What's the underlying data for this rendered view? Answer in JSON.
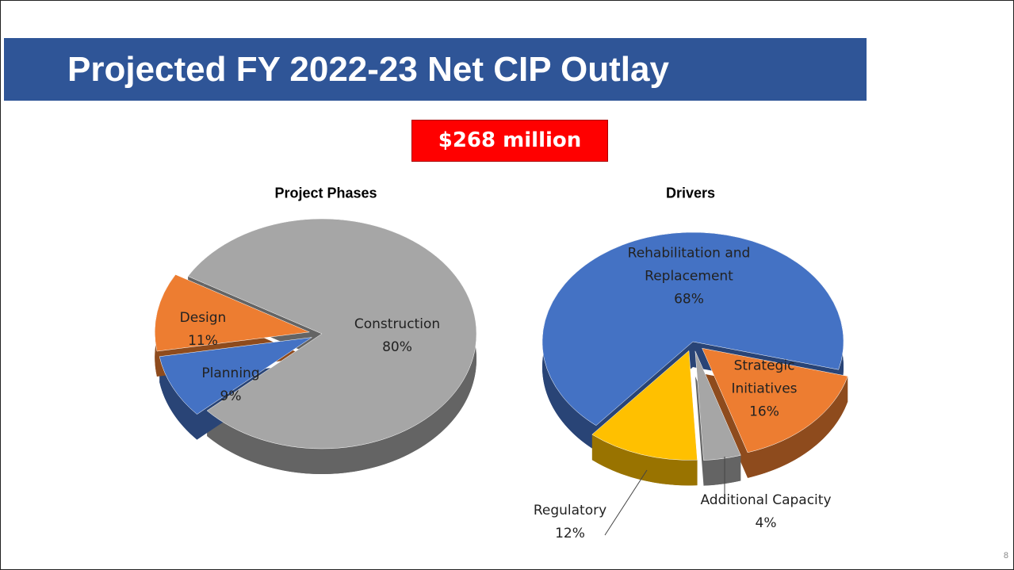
{
  "slide": {
    "title": "Projected FY 2022-23 Net CIP Outlay",
    "total": "$268 million",
    "page_number": "8"
  },
  "chart_data": [
    {
      "type": "pie",
      "title": "Project Phases",
      "categories": [
        "Construction",
        "Planning",
        "Design"
      ],
      "values": [
        80,
        9,
        11
      ],
      "value_labels": [
        "80%",
        "9%",
        "11%"
      ],
      "colors": [
        "#a6a6a6",
        "#4472c4",
        "#ed7d31"
      ]
    },
    {
      "type": "pie",
      "title": "Drivers",
      "categories": [
        "Rehabilitation and Replacement",
        "Strategic Initiatives",
        "Additional Capacity",
        "Regulatory"
      ],
      "values": [
        68,
        16,
        4,
        12
      ],
      "value_labels": [
        "68%",
        "16%",
        "4%",
        "12%"
      ],
      "colors": [
        "#4472c4",
        "#ed7d31",
        "#a6a6a6",
        "#ffc000"
      ]
    }
  ]
}
